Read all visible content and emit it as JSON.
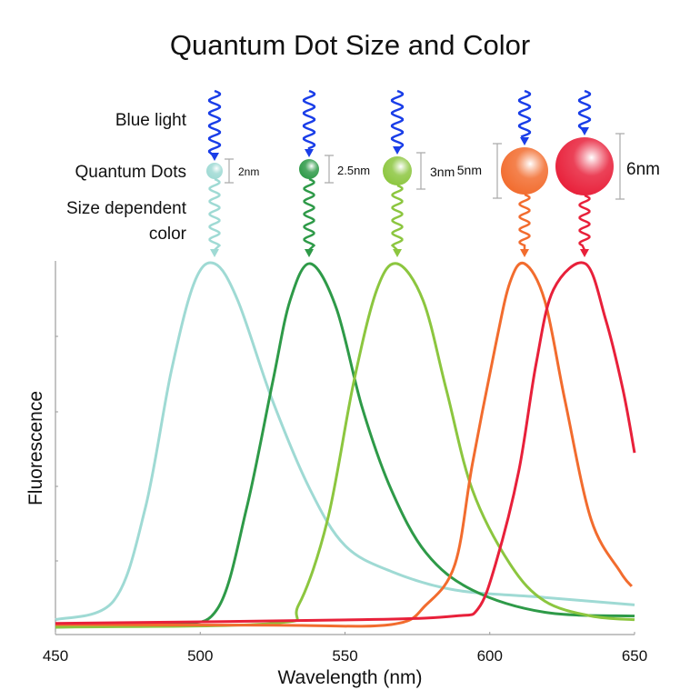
{
  "chart_data": {
    "type": "line",
    "title": "Quantum Dot Size and Color",
    "xlabel": "Wavelength (nm)",
    "ylabel": "Fluorescence",
    "xlim": [
      450,
      650
    ],
    "ylim": [
      0,
      1
    ],
    "xticks": [
      "450",
      "500",
      "550",
      "600",
      "650"
    ],
    "grid": false,
    "series": [
      {
        "name": "2nm",
        "color": "#9fdad4",
        "peak": 505,
        "x": [
          450,
          470,
          481,
          490,
          498,
          505,
          513,
          525,
          538,
          550,
          566,
          588,
          619,
          650
        ],
        "y": [
          0.04,
          0.09,
          0.34,
          0.71,
          0.95,
          1.0,
          0.9,
          0.63,
          0.39,
          0.24,
          0.17,
          0.12,
          0.1,
          0.08
        ]
      },
      {
        "name": "2.5nm",
        "color": "#2e9a48",
        "peak": 538,
        "x": [
          450,
          490,
          506,
          516,
          525,
          531,
          538,
          547,
          556,
          566,
          578,
          594,
          619,
          650
        ],
        "y": [
          0.02,
          0.03,
          0.07,
          0.34,
          0.68,
          0.9,
          1.0,
          0.88,
          0.61,
          0.39,
          0.22,
          0.12,
          0.06,
          0.05
        ]
      },
      {
        "name": "3nm",
        "color": "#8cc63f",
        "peak": 568,
        "x": [
          450,
          525,
          534,
          544,
          553,
          561,
          568,
          577,
          585,
          594,
          607,
          619,
          635,
          650
        ],
        "y": [
          0.02,
          0.03,
          0.08,
          0.31,
          0.68,
          0.93,
          1.0,
          0.9,
          0.66,
          0.39,
          0.19,
          0.09,
          0.05,
          0.04
        ]
      },
      {
        "name": "5nm",
        "color": "#f26c2e",
        "peak": 612,
        "x": [
          450,
          525,
          566,
          578,
          588,
          594,
          602,
          607,
          612,
          619,
          626,
          635,
          645,
          649
        ],
        "y": [
          0.027,
          0.025,
          0.027,
          0.08,
          0.19,
          0.46,
          0.78,
          0.95,
          1.0,
          0.9,
          0.63,
          0.31,
          0.17,
          0.13
        ]
      },
      {
        "name": "6nm",
        "color": "#e8203a",
        "peak": 633,
        "x": [
          450,
          556,
          588,
          596,
          602,
          610,
          616,
          622,
          633,
          640,
          646,
          650
        ],
        "y": [
          0.03,
          0.04,
          0.05,
          0.07,
          0.19,
          0.44,
          0.73,
          0.93,
          1.0,
          0.85,
          0.66,
          0.49
        ]
      }
    ]
  },
  "diagram": {
    "labels": {
      "blue_light": "Blue light",
      "quantum_dots": "Quantum Dots",
      "size_dependent": "Size dependent",
      "color": "color"
    },
    "excitation_color": "#1a3ee8",
    "dots": [
      {
        "size_label": "2nm",
        "color": "#9fdad4"
      },
      {
        "size_label": "2.5nm",
        "color": "#2e9a48"
      },
      {
        "size_label": "3nm",
        "color": "#8cc63f"
      },
      {
        "size_label": "5nm",
        "color": "#f26c2e"
      },
      {
        "size_label": "6nm",
        "color": "#e8203a"
      }
    ]
  }
}
